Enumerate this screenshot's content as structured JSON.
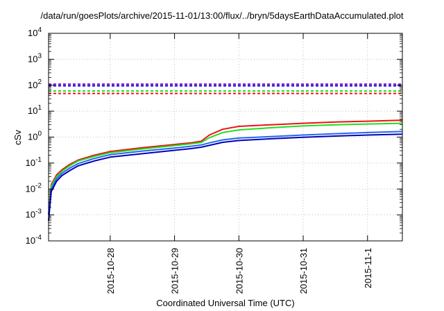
{
  "chart_data": {
    "type": "line",
    "title": "/data/run/goesPlots/archive/2015-11-01/13:00/flux/../bryn/5daysEarthDataAccumulated.plot",
    "xlabel": "Coordinated Universal Time (UTC)",
    "ylabel": "cSv",
    "y_scale": "log",
    "ylim": [
      0.0001,
      10000
    ],
    "xlim": [
      "2015-10-27 01:00",
      "2015-11-01 13:00"
    ],
    "x_ticks": [
      "2015-10-28",
      "2015-10-29",
      "2015-10-30",
      "2015-10-31",
      "2015-11-1"
    ],
    "y_ticks": [
      {
        "base": "10",
        "exp": "-4",
        "value": 0.0001
      },
      {
        "base": "10",
        "exp": "-3",
        "value": 0.001
      },
      {
        "base": "10",
        "exp": "-2",
        "value": 0.01
      },
      {
        "base": "10",
        "exp": "-1",
        "value": 0.1
      },
      {
        "base": "10",
        "exp": "0",
        "value": 1
      },
      {
        "base": "10",
        "exp": "1",
        "value": 10
      },
      {
        "base": "10",
        "exp": "2",
        "value": 100
      },
      {
        "base": "10",
        "exp": "3",
        "value": 1000
      },
      {
        "base": "10",
        "exp": "4",
        "value": 10000
      }
    ],
    "grid": true,
    "legend": "none",
    "series": [
      {
        "color": "#ee1111",
        "x": [
          "2015-10-27 01:00",
          "2015-10-27 02:00",
          "2015-10-27 04:00",
          "2015-10-27 06:00",
          "2015-10-27 09:00",
          "2015-10-27 12:00",
          "2015-10-27 18:00",
          "2015-10-28 00:00",
          "2015-10-28 12:00",
          "2015-10-29 00:00",
          "2015-10-29 06:00",
          "2015-10-29 10:00",
          "2015-10-29 13:00",
          "2015-10-29 18:00",
          "2015-10-30 00:00",
          "2015-10-30 12:00",
          "2015-10-31 00:00",
          "2015-10-31 12:00",
          "2015-11-01 00:00",
          "2015-11-01 13:00"
        ],
        "y": [
          0.001,
          0.015,
          0.035,
          0.055,
          0.09,
          0.13,
          0.2,
          0.28,
          0.39,
          0.52,
          0.6,
          0.7,
          1.2,
          2.0,
          2.6,
          3.0,
          3.4,
          3.8,
          4.1,
          4.5
        ]
      },
      {
        "color": "#22dd22",
        "x": [
          "2015-10-27 01:00",
          "2015-10-27 02:00",
          "2015-10-27 04:00",
          "2015-10-27 06:00",
          "2015-10-27 09:00",
          "2015-10-27 12:00",
          "2015-10-27 18:00",
          "2015-10-28 00:00",
          "2015-10-28 12:00",
          "2015-10-29 00:00",
          "2015-10-29 06:00",
          "2015-10-29 10:00",
          "2015-10-29 13:00",
          "2015-10-29 18:00",
          "2015-10-30 00:00",
          "2015-10-30 12:00",
          "2015-10-31 00:00",
          "2015-10-31 12:00",
          "2015-11-01 00:00",
          "2015-11-01 13:00"
        ],
        "y": [
          0.001,
          0.013,
          0.03,
          0.048,
          0.08,
          0.12,
          0.18,
          0.25,
          0.35,
          0.47,
          0.55,
          0.62,
          0.95,
          1.5,
          1.9,
          2.3,
          2.7,
          3.0,
          3.2,
          3.4
        ]
      },
      {
        "color": "#2266ee",
        "x": [
          "2015-10-27 01:00",
          "2015-10-27 02:00",
          "2015-10-27 04:00",
          "2015-10-27 06:00",
          "2015-10-27 09:00",
          "2015-10-27 12:00",
          "2015-10-27 18:00",
          "2015-10-28 00:00",
          "2015-10-28 12:00",
          "2015-10-29 00:00",
          "2015-10-29 06:00",
          "2015-10-29 10:00",
          "2015-10-29 13:00",
          "2015-10-29 18:00",
          "2015-10-30 00:00",
          "2015-10-30 12:00",
          "2015-10-31 00:00",
          "2015-10-31 12:00",
          "2015-11-01 00:00",
          "2015-11-01 13:00"
        ],
        "y": [
          0.001,
          0.01,
          0.025,
          0.04,
          0.065,
          0.095,
          0.15,
          0.21,
          0.29,
          0.38,
          0.44,
          0.5,
          0.6,
          0.78,
          0.92,
          1.05,
          1.2,
          1.35,
          1.5,
          1.65
        ]
      },
      {
        "color": "#0000bb",
        "x": [
          "2015-10-27 01:00",
          "2015-10-27 02:00",
          "2015-10-27 04:00",
          "2015-10-27 06:00",
          "2015-10-27 09:00",
          "2015-10-27 12:00",
          "2015-10-27 18:00",
          "2015-10-28 00:00",
          "2015-10-28 12:00",
          "2015-10-29 00:00",
          "2015-10-29 06:00",
          "2015-10-29 10:00",
          "2015-10-29 13:00",
          "2015-10-29 18:00",
          "2015-10-30 00:00",
          "2015-10-30 12:00",
          "2015-10-31 00:00",
          "2015-10-31 12:00",
          "2015-11-01 00:00",
          "2015-11-01 13:00"
        ],
        "y": [
          0.0006,
          0.008,
          0.02,
          0.033,
          0.052,
          0.078,
          0.12,
          0.17,
          0.23,
          0.31,
          0.36,
          0.41,
          0.48,
          0.63,
          0.74,
          0.86,
          0.98,
          1.1,
          1.2,
          1.3
        ]
      }
    ],
    "reference_lines": [
      {
        "color": "#8800aa",
        "value": 110,
        "style": "dashed"
      },
      {
        "color": "#0000ff",
        "value": 95,
        "style": "dashed"
      },
      {
        "color": "#22dd22",
        "value": 60,
        "style": "dashed"
      },
      {
        "color": "#ee1111",
        "value": 48,
        "style": "dashed"
      }
    ]
  }
}
